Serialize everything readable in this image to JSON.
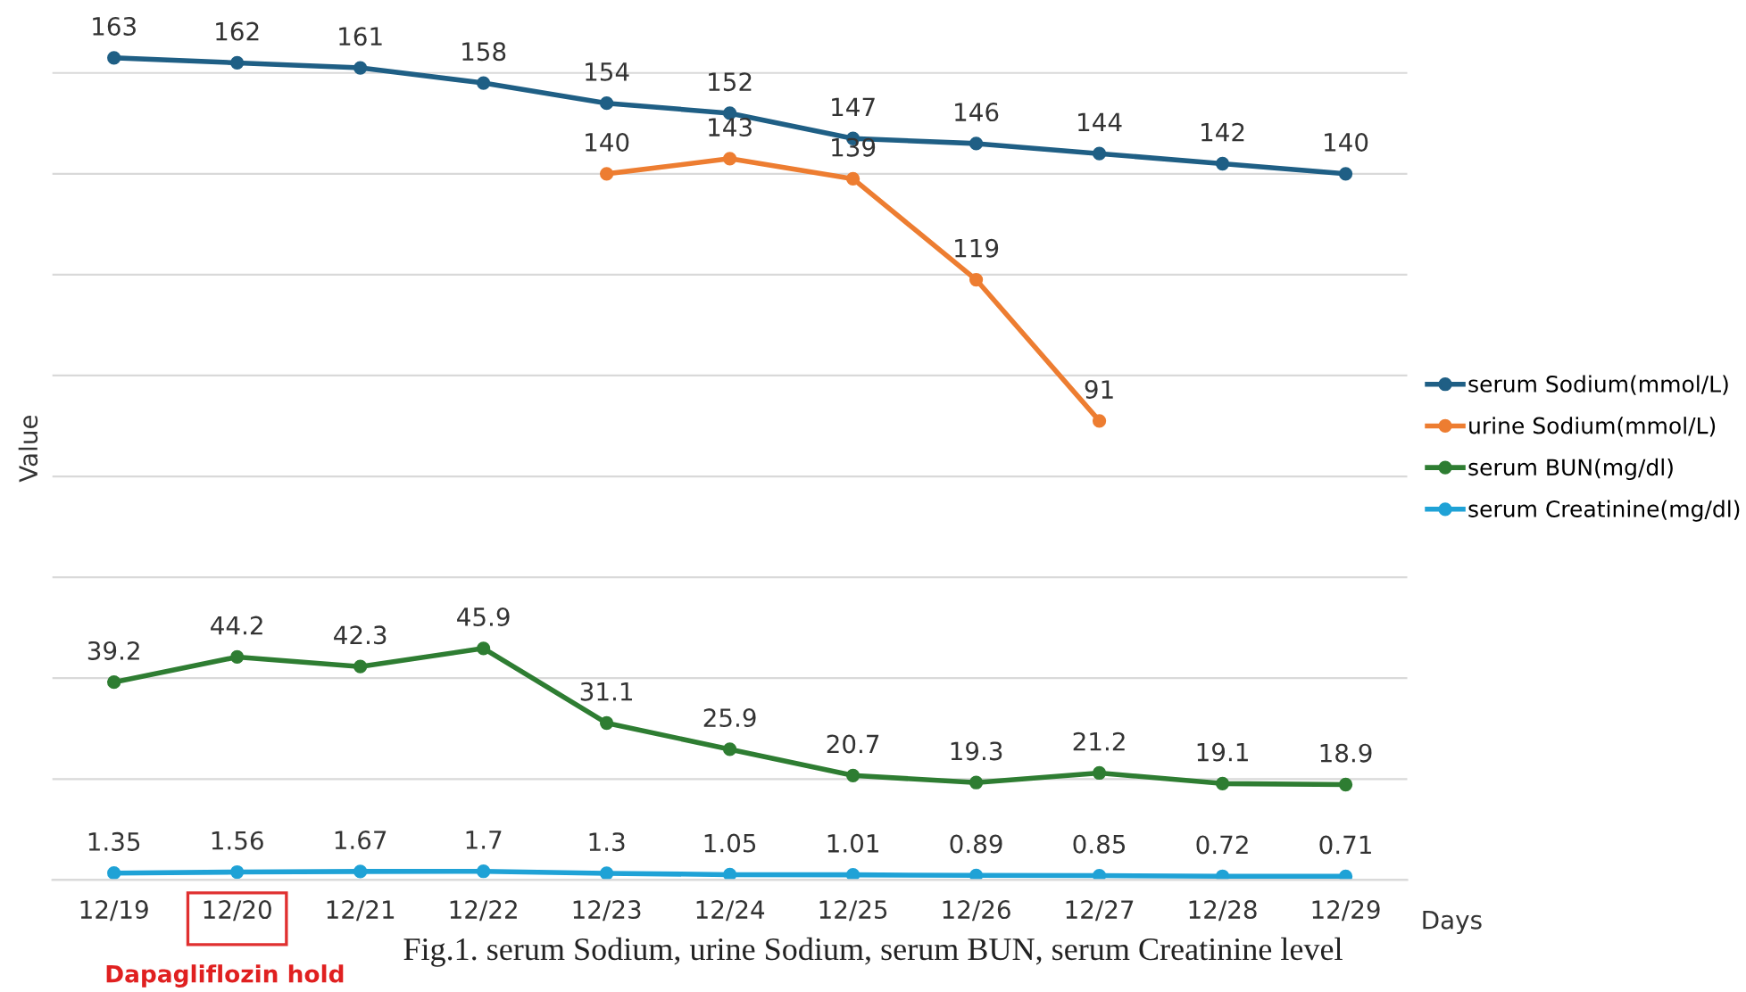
{
  "chart_data": {
    "type": "line",
    "xlabel": "Days",
    "ylabel": "Value",
    "categories": [
      "12/19",
      "12/20",
      "12/21",
      "12/22",
      "12/23",
      "12/24",
      "12/25",
      "12/26",
      "12/27",
      "12/28",
      "12/29"
    ],
    "series": [
      {
        "name": "serum Sodium(mmol/L)",
        "color": "#1f5f85",
        "values": [
          163,
          162,
          161,
          158,
          154,
          152,
          147,
          146,
          144,
          142,
          140
        ]
      },
      {
        "name": "urine Sodium(mmol/L)",
        "color": "#ed7d31",
        "values": [
          null,
          null,
          null,
          null,
          140,
          143,
          139,
          119,
          91,
          null,
          null
        ]
      },
      {
        "name": "serum BUN(mg/dl)",
        "color": "#2e7d32",
        "values": [
          39.2,
          44.2,
          42.3,
          45.9,
          31.1,
          25.9,
          20.7,
          19.3,
          21.2,
          19.1,
          18.9
        ]
      },
      {
        "name": "serum Creatinine(mg/dl)",
        "color": "#1fa2d6",
        "values": [
          1.35,
          1.56,
          1.67,
          1.7,
          1.3,
          1.05,
          1.01,
          0.89,
          0.85,
          0.72,
          0.71
        ]
      }
    ],
    "yticks": [
      {
        "value": 0,
        "label": null
      },
      {
        "value": 20,
        "label": null
      },
      {
        "value": 40,
        "label": null
      },
      {
        "value": 60,
        "label": null
      },
      {
        "value": 80,
        "label": null
      },
      {
        "value": 100,
        "label": null
      },
      {
        "value": 120,
        "label": null
      },
      {
        "value": 140,
        "label": null
      },
      {
        "value": 160,
        "label": null
      }
    ],
    "tick_labels": "x",
    "grid": "y",
    "legend": "right",
    "marker": "circle",
    "line_style": "solid",
    "data_labels": true,
    "annotations": [
      "Dapagliflozin hold",
      "Fig.1. serum Sodium, urine Sodium, serum BUN, serum Creatinine level"
    ]
  }
}
